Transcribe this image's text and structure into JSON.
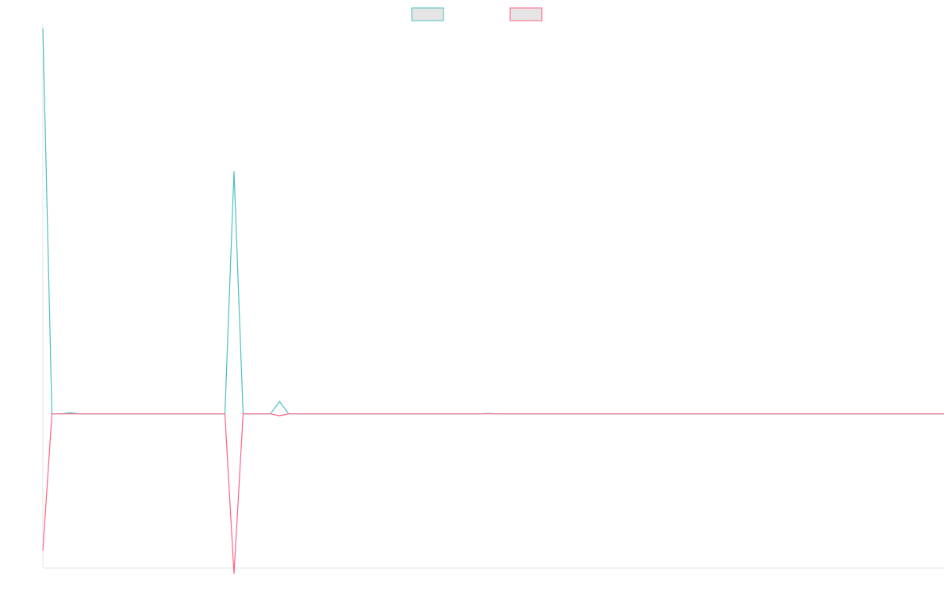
{
  "chart_data": {
    "type": "line",
    "title": "",
    "xlabel": "",
    "ylabel": "",
    "legend_position": "top-center",
    "grid": false,
    "axis_labels_visible": false,
    "x_count": 100,
    "ylim": [
      -0.4,
      1.0
    ],
    "series": [
      {
        "color": "#4bc0c0",
        "legend_fill": "#e5e5e5",
        "points": [
          [
            0,
            1.0
          ],
          [
            1,
            0.0
          ],
          [
            2,
            0.0
          ],
          [
            3,
            0.003
          ],
          [
            4,
            0.0
          ],
          [
            19,
            0.0
          ],
          [
            20,
            0.0
          ],
          [
            21,
            0.63
          ],
          [
            22,
            0.0
          ],
          [
            25,
            0.0
          ],
          [
            26,
            0.032
          ],
          [
            27,
            0.0
          ],
          [
            48,
            0.0
          ],
          [
            49,
            0.001
          ],
          [
            50,
            0.0
          ],
          [
            99,
            0.0
          ]
        ]
      },
      {
        "color": "#ff6384",
        "legend_fill": "#e5e5e5",
        "points": [
          [
            0,
            -0.355
          ],
          [
            1,
            0.0
          ],
          [
            2,
            0.0
          ],
          [
            19,
            0.0
          ],
          [
            20,
            0.0
          ],
          [
            21,
            -0.415
          ],
          [
            22,
            0.0
          ],
          [
            25,
            0.0
          ],
          [
            26,
            -0.005
          ],
          [
            27,
            0.0
          ],
          [
            99,
            0.0
          ]
        ]
      }
    ]
  }
}
